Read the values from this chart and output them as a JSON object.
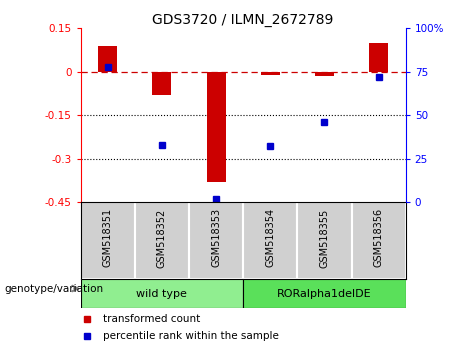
{
  "title": "GDS3720 / ILMN_2672789",
  "samples": [
    "GSM518351",
    "GSM518352",
    "GSM518353",
    "GSM518354",
    "GSM518355",
    "GSM518356"
  ],
  "red_bars": [
    0.09,
    -0.08,
    -0.38,
    -0.01,
    -0.015,
    0.1
  ],
  "blue_dots_pct": [
    78,
    33,
    2,
    32,
    46,
    72
  ],
  "ylim_left": [
    -0.45,
    0.15
  ],
  "ylim_right": [
    0,
    100
  ],
  "yticks_left": [
    0.15,
    0.0,
    -0.15,
    -0.3,
    -0.45
  ],
  "yticks_left_labels": [
    "0.15",
    "0",
    "-0.15",
    "-0.3",
    "-0.45"
  ],
  "yticks_right": [
    100,
    75,
    50,
    25,
    0
  ],
  "yticks_right_labels": [
    "100%",
    "75",
    "50",
    "25",
    "0"
  ],
  "hlines": [
    -0.15,
    -0.3
  ],
  "group_ranges": [
    [
      0,
      2
    ],
    [
      3,
      5
    ]
  ],
  "group_labels": [
    "wild type",
    "RORalpha1delDE"
  ],
  "group_colors": [
    "#90EE90",
    "#5AE05A"
  ],
  "legend_red": "transformed count",
  "legend_blue": "percentile rank within the sample",
  "bar_color": "#CC0000",
  "dot_color": "#0000CC",
  "dashed_line_color": "#CC0000",
  "group_label_text": "genotype/variation",
  "sample_box_color": "#D0D0D0",
  "bg_color": "#FFFFFF"
}
